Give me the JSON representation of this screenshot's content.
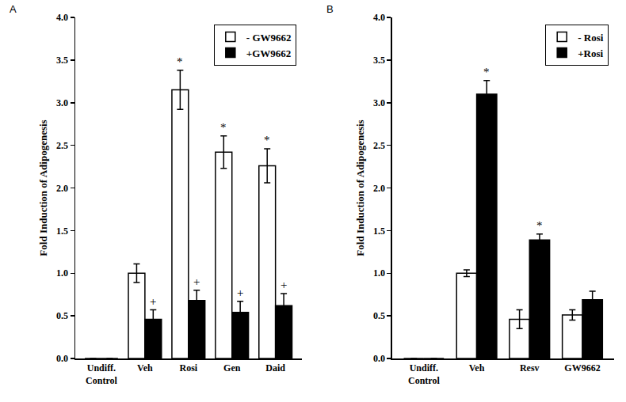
{
  "chart_data": [
    {
      "type": "bar",
      "panel_label": "A",
      "categories": [
        "Undiff. Control",
        "Veh",
        "Rosi",
        "Gen",
        "Daid"
      ],
      "series": [
        {
          "name": "- GW9662",
          "color": "#ffffff",
          "values": [
            0,
            1.0,
            3.15,
            2.42,
            2.26
          ],
          "errors": [
            0,
            0.11,
            0.23,
            0.19,
            0.2
          ],
          "significance": [
            null,
            null,
            "*",
            "*",
            "*"
          ]
        },
        {
          "name": "+GW9662",
          "color": "#000000",
          "values": [
            0,
            0.46,
            0.68,
            0.54,
            0.62
          ],
          "errors": [
            0,
            0.11,
            0.12,
            0.13,
            0.14
          ],
          "significance": [
            null,
            "+",
            "+",
            "+",
            "+"
          ]
        }
      ],
      "ylabel": "Fold Induction of Adipogenesis",
      "ylim": [
        0,
        4
      ],
      "yticks": [
        {
          "value": 0,
          "label": "0.0"
        },
        {
          "value": 0.5,
          "label": "0.5"
        },
        {
          "value": 1,
          "label": "1.0"
        },
        {
          "value": 1.5,
          "label": "1.5"
        },
        {
          "value": 2,
          "label": "2.0"
        },
        {
          "value": 2.5,
          "label": "2.5"
        },
        {
          "value": 3,
          "label": "3.0"
        },
        {
          "value": 3.5,
          "label": "3.5"
        },
        {
          "value": 4,
          "label": "4.0"
        }
      ],
      "legend": "upper right",
      "grid": false
    },
    {
      "type": "bar",
      "panel_label": "B",
      "categories": [
        "Undiff. Control",
        "Veh",
        "Resv",
        "GW9662"
      ],
      "series": [
        {
          "name": "- Rosi",
          "color": "#ffffff",
          "values": [
            0,
            1.0,
            0.46,
            0.51
          ],
          "errors": [
            0,
            0.04,
            0.11,
            0.06
          ],
          "significance": [
            null,
            null,
            null,
            null
          ]
        },
        {
          "name": "+Rosi",
          "color": "#000000",
          "values": [
            0,
            3.1,
            1.39,
            0.69
          ],
          "errors": [
            0,
            0.16,
            0.07,
            0.1
          ],
          "significance": [
            null,
            "*",
            "*",
            null
          ]
        }
      ],
      "ylabel": "Fold Induction of Adipogenesis",
      "ylim": [
        0,
        4
      ],
      "yticks": [
        {
          "value": 0,
          "label": "0.0"
        },
        {
          "value": 0.5,
          "label": "0.5"
        },
        {
          "value": 1,
          "label": "1.0"
        },
        {
          "value": 1.5,
          "label": "1.5"
        },
        {
          "value": 2,
          "label": "2.0"
        },
        {
          "value": 2.5,
          "label": "2.5"
        },
        {
          "value": 3,
          "label": "3.0"
        },
        {
          "value": 3.5,
          "label": "3.5"
        },
        {
          "value": 4,
          "label": "4.0"
        }
      ],
      "legend": "upper right",
      "grid": false
    }
  ]
}
